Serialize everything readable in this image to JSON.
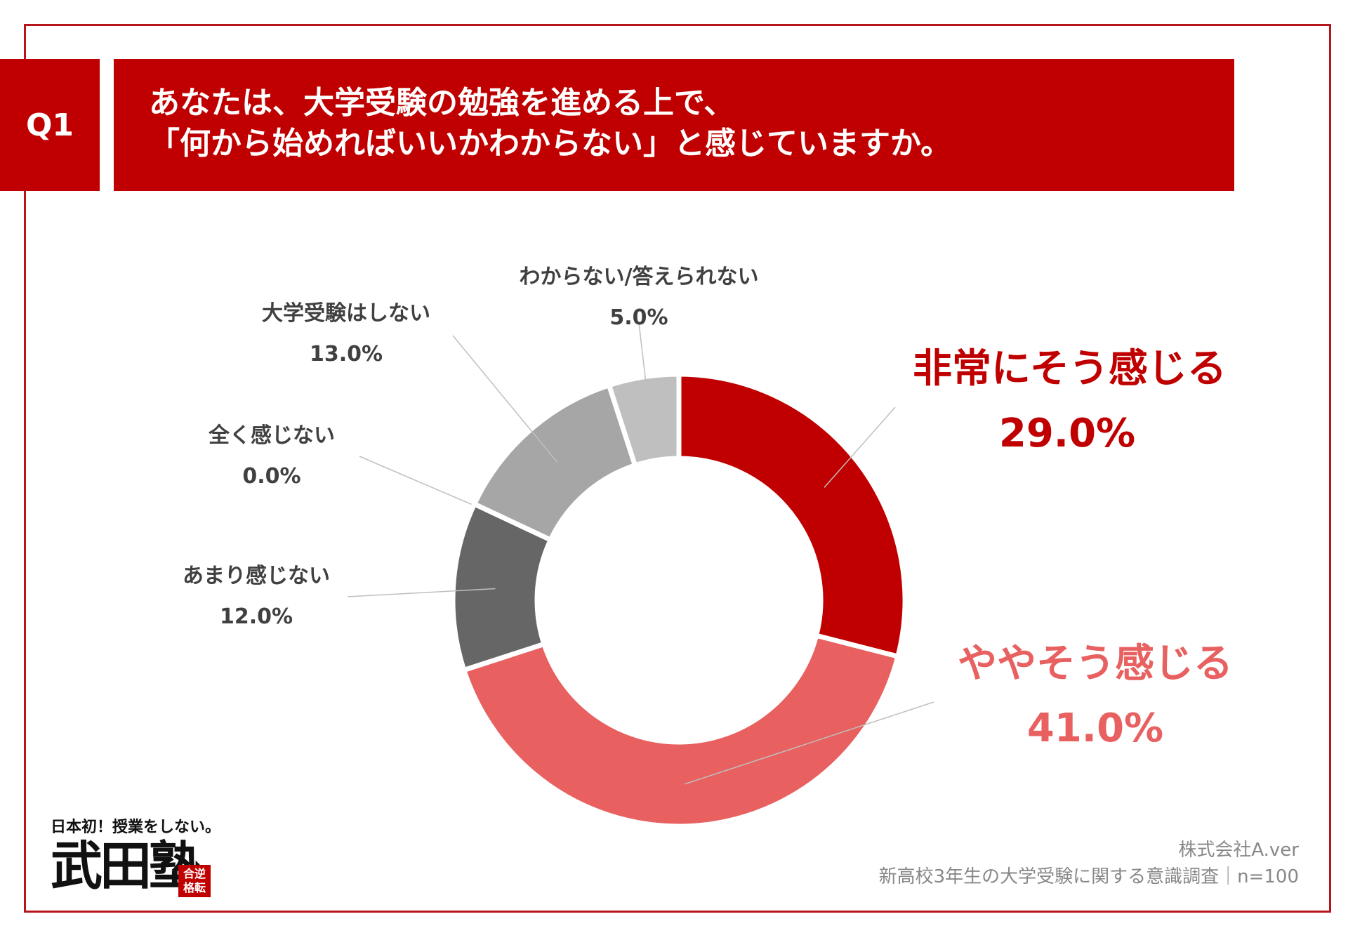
{
  "header": {
    "badge": "Q1",
    "question_line1": "あなたは、大学受験の勉強を進める上で、",
    "question_line2": "「何から始めればいいかわからない」と感じていますか。"
  },
  "chart_data": {
    "type": "pie",
    "donut": true,
    "categories": [
      "非常にそう感じる",
      "ややそう感じる",
      "あまり感じない",
      "全く感じない",
      "大学受験はしない",
      "わからない/答えられない"
    ],
    "values": [
      29.0,
      41.0,
      12.0,
      0.0,
      13.0,
      5.0
    ],
    "value_labels": [
      "29.0%",
      "41.0%",
      "12.0%",
      "0.0%",
      "13.0%",
      "5.0%"
    ],
    "colors": [
      "#c00000",
      "#e86060",
      "#666666",
      "#8c8c8c",
      "#a6a6a6",
      "#bfbfbf"
    ]
  },
  "footer": {
    "source_company": "株式会社A.ver",
    "survey_note": "新高校3年生の大学受験に関する意識調査｜n=100"
  },
  "logo": {
    "tagline": "日本初！授業をしない。",
    "name": "武田塾",
    "stamp": "合逆格転"
  }
}
